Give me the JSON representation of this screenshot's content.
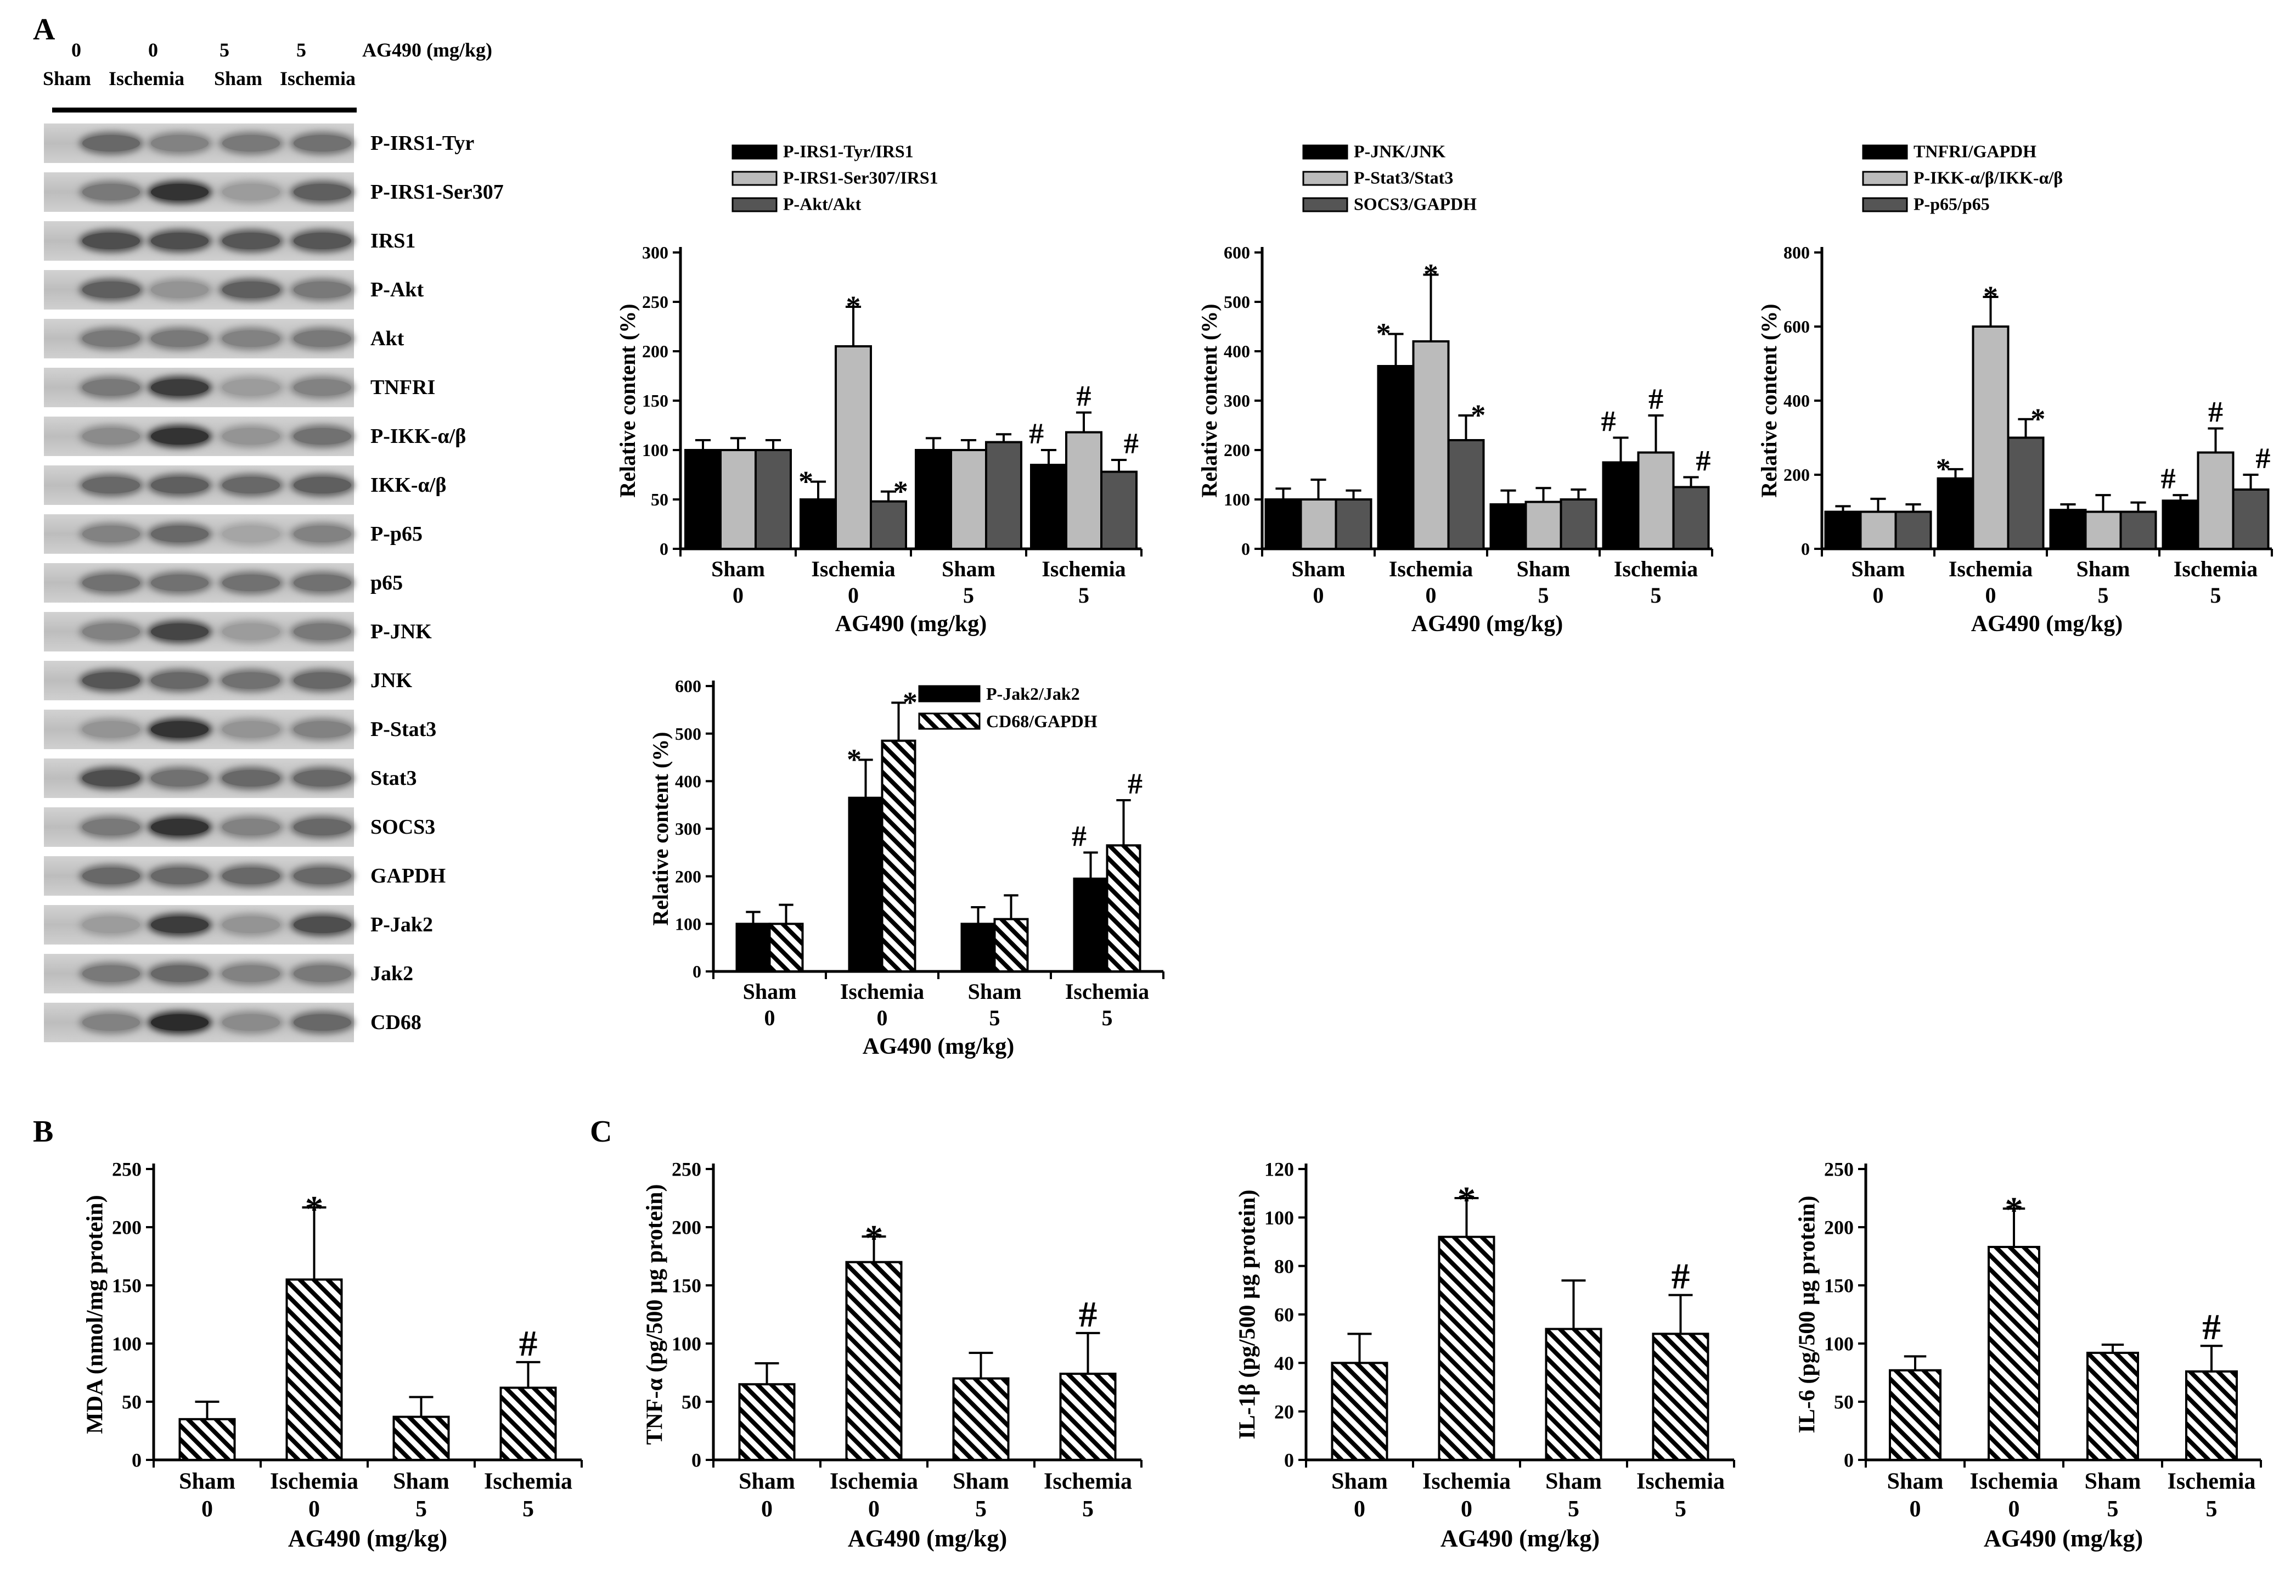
{
  "panels": {
    "a": "A",
    "b": "B",
    "c": "C"
  },
  "blot": {
    "dose_header": [
      "0",
      "0",
      "5",
      "5"
    ],
    "dose_unit": "AG490 (mg/kg)",
    "group_header": [
      "Sham",
      "Ischemia",
      "Sham",
      "Ischemia"
    ],
    "labels": [
      "P-IRS1-Tyr",
      "P-IRS1-Ser307",
      "IRS1",
      "P-Akt",
      "Akt",
      "TNFRI",
      "P-IKK-α/β",
      "IKK-α/β",
      "P-p65",
      "p65",
      "P-JNK",
      "JNK",
      "P-Stat3",
      "Stat3",
      "SOCS3",
      "GAPDH",
      "P-Jak2",
      "Jak2",
      "CD68"
    ],
    "intensity": [
      [
        0.55,
        0.4,
        0.45,
        0.5
      ],
      [
        0.45,
        0.85,
        0.25,
        0.6
      ],
      [
        0.7,
        0.7,
        0.65,
        0.65
      ],
      [
        0.6,
        0.3,
        0.6,
        0.45
      ],
      [
        0.45,
        0.45,
        0.4,
        0.45
      ],
      [
        0.45,
        0.8,
        0.25,
        0.4
      ],
      [
        0.35,
        0.85,
        0.3,
        0.5
      ],
      [
        0.55,
        0.6,
        0.55,
        0.6
      ],
      [
        0.4,
        0.55,
        0.2,
        0.4
      ],
      [
        0.5,
        0.5,
        0.5,
        0.5
      ],
      [
        0.4,
        0.75,
        0.25,
        0.45
      ],
      [
        0.65,
        0.55,
        0.5,
        0.55
      ],
      [
        0.3,
        0.85,
        0.3,
        0.4
      ],
      [
        0.7,
        0.5,
        0.55,
        0.55
      ],
      [
        0.45,
        0.85,
        0.4,
        0.55
      ],
      [
        0.55,
        0.55,
        0.55,
        0.55
      ],
      [
        0.25,
        0.8,
        0.3,
        0.7
      ],
      [
        0.45,
        0.55,
        0.4,
        0.45
      ],
      [
        0.4,
        0.9,
        0.35,
        0.55
      ]
    ]
  },
  "chart_data": [
    {
      "type": "bar",
      "title": "",
      "categories": [
        "Sham",
        "Ischemia",
        "Sham",
        "Ischemia"
      ],
      "doses": [
        "0",
        "0",
        "5",
        "5"
      ],
      "xlabel": "AG490 (mg/kg)",
      "ylabel": "Relative content (%)",
      "ylim": [
        0,
        300
      ],
      "yticks": [
        0,
        50,
        100,
        150,
        200,
        250,
        300
      ],
      "legend": "top-left",
      "series": [
        {
          "name": "P-IRS1-Tyr/IRS1",
          "fill": "#000000",
          "values": [
            100,
            50,
            100,
            85
          ],
          "errors": [
            10,
            18,
            12,
            15
          ],
          "marks": [
            "",
            "*",
            "",
            "#"
          ]
        },
        {
          "name": "P-IRS1-Ser307/IRS1",
          "fill": "#bbbbbb",
          "values": [
            100,
            205,
            100,
            118
          ],
          "errors": [
            12,
            40,
            10,
            20
          ],
          "marks": [
            "",
            "*",
            "",
            "#"
          ]
        },
        {
          "name": "P-Akt/Akt",
          "fill": "#555555",
          "values": [
            100,
            48,
            108,
            78
          ],
          "errors": [
            10,
            10,
            8,
            12
          ],
          "marks": [
            "",
            "*",
            "",
            "#"
          ]
        }
      ]
    },
    {
      "type": "bar",
      "title": "",
      "categories": [
        "Sham",
        "Ischemia",
        "Sham",
        "Ischemia"
      ],
      "doses": [
        "0",
        "0",
        "5",
        "5"
      ],
      "xlabel": "AG490 (mg/kg)",
      "ylabel": "Relative content (%)",
      "ylim": [
        0,
        600
      ],
      "yticks": [
        0,
        100,
        200,
        300,
        400,
        500,
        600
      ],
      "legend": "top-left",
      "series": [
        {
          "name": "P-JNK/JNK",
          "fill": "#000000",
          "values": [
            100,
            370,
            90,
            175
          ],
          "errors": [
            22,
            65,
            28,
            50
          ],
          "marks": [
            "",
            "*",
            "",
            "#"
          ]
        },
        {
          "name": "P-Stat3/Stat3",
          "fill": "#bbbbbb",
          "values": [
            100,
            420,
            95,
            195
          ],
          "errors": [
            40,
            135,
            28,
            75
          ],
          "marks": [
            "",
            "*",
            "",
            "#"
          ]
        },
        {
          "name": "SOCS3/GAPDH",
          "fill": "#555555",
          "values": [
            100,
            220,
            100,
            125
          ],
          "errors": [
            18,
            50,
            20,
            20
          ],
          "marks": [
            "",
            "*",
            "",
            "#"
          ]
        }
      ]
    },
    {
      "type": "bar",
      "title": "",
      "categories": [
        "Sham",
        "Ischemia",
        "Sham",
        "Ischemia"
      ],
      "doses": [
        "0",
        "0",
        "5",
        "5"
      ],
      "xlabel": "AG490 (mg/kg)",
      "ylabel": "Relative content (%)",
      "ylim": [
        0,
        800
      ],
      "yticks": [
        0,
        200,
        400,
        600,
        800
      ],
      "legend": "top-left",
      "series": [
        {
          "name": "TNFRI/GAPDH",
          "fill": "#000000",
          "values": [
            100,
            190,
            105,
            130
          ],
          "errors": [
            15,
            25,
            15,
            15
          ],
          "marks": [
            "",
            "*",
            "",
            "#"
          ]
        },
        {
          "name": "P-IKK-α/β/IKK-α/β",
          "fill": "#bbbbbb",
          "values": [
            100,
            600,
            100,
            260
          ],
          "errors": [
            35,
            80,
            45,
            65
          ],
          "marks": [
            "",
            "*",
            "",
            "#"
          ]
        },
        {
          "name": "P-p65/p65",
          "fill": "#555555",
          "values": [
            100,
            300,
            100,
            160
          ],
          "errors": [
            20,
            50,
            25,
            40
          ],
          "marks": [
            "",
            "*",
            "",
            "#"
          ]
        }
      ]
    },
    {
      "type": "bar",
      "title": "",
      "categories": [
        "Sham",
        "Ischemia",
        "Sham",
        "Ischemia"
      ],
      "doses": [
        "0",
        "0",
        "5",
        "5"
      ],
      "xlabel": "AG490 (mg/kg)",
      "ylabel": "Relative content (%)",
      "ylim": [
        0,
        600
      ],
      "yticks": [
        0,
        100,
        200,
        300,
        400,
        500,
        600
      ],
      "legend": "top-right",
      "series": [
        {
          "name": "P-Jak2/Jak2",
          "fill": "#000000",
          "values": [
            100,
            365,
            100,
            195
          ],
          "errors": [
            25,
            80,
            35,
            55
          ],
          "marks": [
            "",
            "*",
            "",
            "#"
          ]
        },
        {
          "name": "CD68/GAPDH",
          "fill": "hatch",
          "values": [
            100,
            485,
            110,
            265
          ],
          "errors": [
            40,
            80,
            50,
            95
          ],
          "marks": [
            "",
            "*",
            "",
            "#"
          ]
        }
      ]
    },
    {
      "type": "bar",
      "title": "",
      "categories": [
        "Sham",
        "Ischemia",
        "Sham",
        "Ischemia"
      ],
      "doses": [
        "0",
        "0",
        "5",
        "5"
      ],
      "xlabel": "AG490 (mg/kg)",
      "ylabel": "MDA (nmol/mg protein)",
      "ylim": [
        0,
        250
      ],
      "yticks": [
        0,
        50,
        100,
        150,
        200,
        250
      ],
      "legend": "none",
      "series": [
        {
          "name": "MDA",
          "fill": "hatch",
          "values": [
            35,
            155,
            37,
            62
          ],
          "errors": [
            15,
            62,
            17,
            22
          ],
          "marks": [
            "",
            "*",
            "",
            "#"
          ]
        }
      ]
    },
    {
      "type": "bar",
      "title": "",
      "categories": [
        "Sham",
        "Ischemia",
        "Sham",
        "Ischemia"
      ],
      "doses": [
        "0",
        "0",
        "5",
        "5"
      ],
      "xlabel": "AG490 (mg/kg)",
      "ylabel": "TNF-α (pg/500 µg protein)",
      "ylim": [
        0,
        250
      ],
      "yticks": [
        0,
        50,
        100,
        150,
        200,
        250
      ],
      "legend": "none",
      "series": [
        {
          "name": "TNF-α",
          "fill": "hatch",
          "values": [
            65,
            170,
            70,
            74
          ],
          "errors": [
            18,
            22,
            22,
            35
          ],
          "marks": [
            "",
            "*",
            "",
            "#"
          ]
        }
      ]
    },
    {
      "type": "bar",
      "title": "",
      "categories": [
        "Sham",
        "Ischemia",
        "Sham",
        "Ischemia"
      ],
      "doses": [
        "0",
        "0",
        "5",
        "5"
      ],
      "xlabel": "AG490 (mg/kg)",
      "ylabel": "IL-1β (pg/500 µg protein)",
      "ylim": [
        0,
        120
      ],
      "yticks": [
        0,
        20,
        40,
        60,
        80,
        100,
        120
      ],
      "legend": "none",
      "series": [
        {
          "name": "IL-1β",
          "fill": "hatch",
          "values": [
            40,
            92,
            54,
            52
          ],
          "errors": [
            12,
            16,
            20,
            16
          ],
          "marks": [
            "",
            "*",
            "",
            "#"
          ]
        }
      ]
    },
    {
      "type": "bar",
      "title": "",
      "categories": [
        "Sham",
        "Ischemia",
        "Sham",
        "Ischemia"
      ],
      "doses": [
        "0",
        "0",
        "5",
        "5"
      ],
      "xlabel": "AG490 (mg/kg)",
      "ylabel": "IL-6 (pg/500 µg protein)",
      "ylim": [
        0,
        250
      ],
      "yticks": [
        0,
        50,
        100,
        150,
        200,
        250
      ],
      "legend": "none",
      "series": [
        {
          "name": "IL-6",
          "fill": "hatch",
          "values": [
            77,
            183,
            92,
            76
          ],
          "errors": [
            12,
            33,
            7,
            22
          ],
          "marks": [
            "",
            "*",
            "",
            "#"
          ]
        }
      ]
    }
  ]
}
